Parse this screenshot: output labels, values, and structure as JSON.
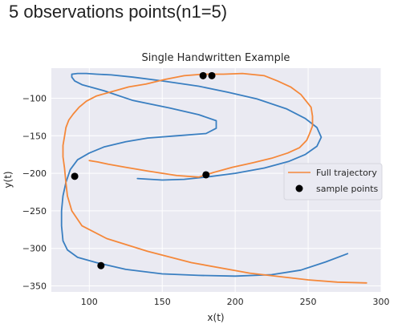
{
  "heading": "5 observations points(n1=5)",
  "chart_data": {
    "type": "line",
    "title": "Single Handwritten Example",
    "xlabel": "x(t)",
    "ylabel": "y(t)",
    "xlim": [
      74,
      300
    ],
    "ylim": [
      -358,
      -60
    ],
    "x_ticks": [
      100,
      150,
      200,
      250,
      300
    ],
    "y_ticks": [
      -100,
      -150,
      -200,
      -250,
      -300,
      -350
    ],
    "x_tick_labels": [
      "100",
      "150",
      "200",
      "250",
      "300"
    ],
    "y_tick_labels": [
      "−100",
      "−150",
      "−200",
      "−250",
      "−300",
      "−350"
    ],
    "grid": true,
    "legend_position": "center-right",
    "background_color": "#eaeaf2",
    "series": [
      {
        "kind": "line",
        "color": "#3a7fc1",
        "x": [
          133,
          150,
          165,
          180,
          200,
          220,
          237,
          248,
          256,
          259,
          256,
          248,
          235,
          215,
          195,
          175,
          150,
          130,
          115,
          105,
          98,
          92,
          88,
          88,
          90,
          95,
          110,
          130,
          155,
          175,
          187,
          187,
          180,
          160,
          140,
          125,
          110,
          100,
          92,
          87,
          84,
          82,
          81,
          81,
          82,
          85,
          92,
          105,
          125,
          150,
          175,
          200,
          225,
          245,
          262,
          277
        ],
        "y": [
          -207,
          -209,
          -208,
          -205,
          -200,
          -193,
          -184,
          -175,
          -164,
          -152,
          -139,
          -127,
          -114,
          -101,
          -92,
          -84,
          -77,
          -72,
          -69,
          -68,
          -67,
          -67,
          -68,
          -72,
          -77,
          -82,
          -90,
          -103,
          -113,
          -122,
          -130,
          -140,
          -147,
          -150,
          -153,
          -158,
          -165,
          -173,
          -182,
          -195,
          -212,
          -230,
          -250,
          -270,
          -290,
          -302,
          -312,
          -319,
          -328,
          -334,
          -336,
          -337,
          -335,
          -329,
          -318,
          -307
        ]
      },
      {
        "kind": "line",
        "name": "Full trajectory",
        "color": "#f5883a",
        "x": [
          100,
          103,
          106,
          113,
          125,
          140,
          160,
          175,
          185,
          198,
          212,
          225,
          236,
          244,
          249,
          251,
          253,
          253,
          252,
          245,
          238,
          229,
          220,
          205,
          192,
          178,
          165,
          152,
          139,
          127,
          116,
          105,
          98,
          93,
          89,
          86,
          84,
          83,
          82,
          82,
          83,
          84,
          85,
          88,
          95,
          112,
          140,
          170,
          210,
          250,
          270,
          290
        ],
        "y": [
          -183,
          -184,
          -185,
          -188,
          -192,
          -197,
          -203,
          -205,
          -199,
          -192,
          -186,
          -180,
          -173,
          -166,
          -156,
          -147,
          -137,
          -124,
          -112,
          -95,
          -85,
          -77,
          -70,
          -67,
          -68,
          -68,
          -70,
          -75,
          -81,
          -85,
          -91,
          -97,
          -104,
          -112,
          -121,
          -129,
          -139,
          -151,
          -163,
          -178,
          -193,
          -213,
          -230,
          -250,
          -270,
          -287,
          -304,
          -319,
          -333,
          -342,
          -345,
          -346
        ]
      },
      {
        "kind": "scatter",
        "name": "sample points",
        "color": "#000000",
        "x": [
          90,
          108,
          180,
          178,
          184
        ],
        "y": [
          -204,
          -323,
          -202,
          -70,
          -70
        ]
      }
    ]
  }
}
